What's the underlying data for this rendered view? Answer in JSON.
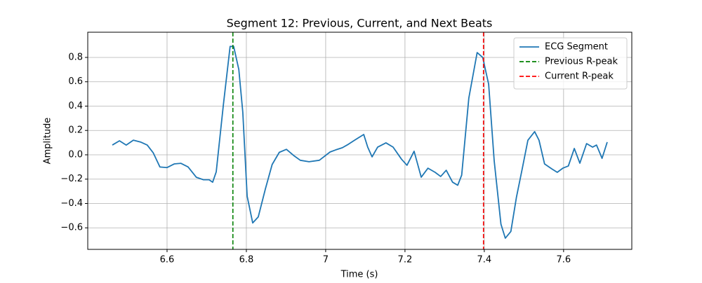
{
  "chart_data": {
    "type": "line",
    "title": "Segment 12: Previous, Current, and Next Beats",
    "xlabel": "Time (s)",
    "ylabel": "Amplitude",
    "x": [
      6.462,
      6.48,
      6.497,
      6.515,
      6.533,
      6.55,
      6.565,
      6.582,
      6.6,
      6.618,
      6.635,
      6.653,
      6.674,
      6.692,
      6.706,
      6.715,
      6.724,
      6.742,
      6.759,
      6.768,
      6.781,
      6.791,
      6.802,
      6.816,
      6.83,
      6.848,
      6.865,
      6.883,
      6.901,
      6.919,
      6.936,
      6.958,
      6.984,
      7.011,
      7.025,
      7.042,
      7.057,
      7.073,
      7.096,
      7.106,
      7.117,
      7.131,
      7.152,
      7.17,
      7.191,
      7.205,
      7.223,
      7.241,
      7.258,
      7.276,
      7.29,
      7.304,
      7.32,
      7.333,
      7.343,
      7.361,
      7.382,
      7.396,
      7.411,
      7.425,
      7.442,
      7.453,
      7.467,
      7.481,
      7.496,
      7.51,
      7.527,
      7.538,
      7.552,
      7.57,
      7.584,
      7.598,
      7.612,
      7.627,
      7.641,
      7.658,
      7.673,
      7.683,
      7.697,
      7.71
    ],
    "series": [
      {
        "name": "ECG Segment",
        "color": "#1f77b4",
        "values": [
          0.08,
          0.115,
          0.08,
          0.12,
          0.105,
          0.08,
          0.017,
          -0.1,
          -0.105,
          -0.075,
          -0.07,
          -0.1,
          -0.185,
          -0.205,
          -0.205,
          -0.225,
          -0.14,
          0.41,
          0.89,
          0.89,
          0.7,
          0.35,
          -0.34,
          -0.56,
          -0.51,
          -0.28,
          -0.08,
          0.02,
          0.045,
          -0.005,
          -0.045,
          -0.057,
          -0.045,
          0.023,
          0.04,
          0.058,
          0.086,
          0.12,
          0.167,
          0.063,
          -0.017,
          0.063,
          0.098,
          0.063,
          -0.035,
          -0.086,
          0.029,
          -0.184,
          -0.11,
          -0.144,
          -0.178,
          -0.127,
          -0.225,
          -0.25,
          -0.167,
          0.466,
          0.84,
          0.8,
          0.58,
          -0.05,
          -0.57,
          -0.685,
          -0.63,
          -0.35,
          -0.11,
          0.12,
          0.19,
          0.12,
          -0.075,
          -0.115,
          -0.144,
          -0.11,
          -0.092,
          0.052,
          -0.069,
          0.092,
          0.063,
          0.08,
          -0.029,
          0.104
        ]
      }
    ],
    "vlines": [
      {
        "name": "Previous R-peak",
        "color": "#008000",
        "x": 6.766
      },
      {
        "name": "Current R-peak",
        "color": "#ff0000",
        "x": 7.398
      }
    ],
    "xlim": [
      6.4,
      7.772
    ],
    "ylim": [
      -0.777,
      1.007
    ],
    "xticks": [
      6.6,
      6.8,
      7.0,
      7.2,
      7.4,
      7.6
    ],
    "yticks": [
      {
        "value": -0.6,
        "label": "−0.6"
      },
      {
        "value": -0.4,
        "label": "−0.4"
      },
      {
        "value": -0.2,
        "label": "−0.2"
      },
      {
        "value": 0,
        "label": "0.0"
      },
      0.2,
      0.4,
      0.6,
      0.8
    ],
    "grid": true,
    "legend": "upper right"
  }
}
